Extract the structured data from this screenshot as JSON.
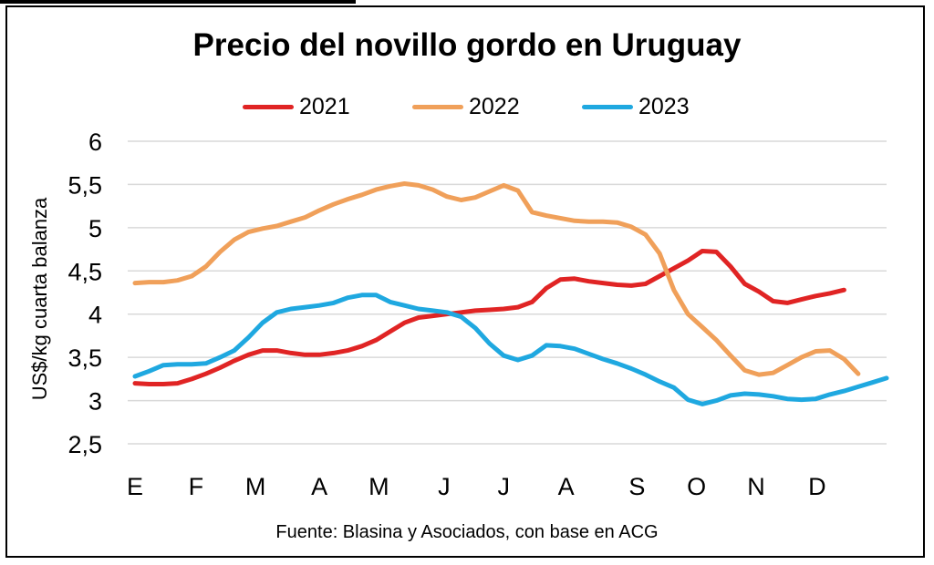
{
  "title": "Precio del novillo gordo en Uruguay",
  "source": "Fuente: Blasina y Asociados, con base en ACG",
  "chart_data": {
    "type": "line",
    "title": "Precio del novillo gordo en Uruguay",
    "ylabel": "US$/kg cuarta balanza",
    "xlabel": "",
    "ylim": [
      2.5,
      6
    ],
    "y_ticks": [
      {
        "value": 6,
        "label": "6"
      },
      {
        "value": 5.5,
        "label": "5,5"
      },
      {
        "value": 5,
        "label": "5"
      },
      {
        "value": 4.5,
        "label": "4,5"
      },
      {
        "value": 4,
        "label": "4"
      },
      {
        "value": 3.5,
        "label": "3,5"
      },
      {
        "value": 3,
        "label": "3"
      },
      {
        "value": 2.5,
        "label": "2,5"
      }
    ],
    "x_ticks": [
      {
        "week": 1,
        "label": "E"
      },
      {
        "week": 5.3,
        "label": "F"
      },
      {
        "week": 9.5,
        "label": "M"
      },
      {
        "week": 14,
        "label": "A"
      },
      {
        "week": 18.2,
        "label": "M"
      },
      {
        "week": 22.8,
        "label": "J"
      },
      {
        "week": 27,
        "label": "J"
      },
      {
        "week": 31.4,
        "label": "A"
      },
      {
        "week": 36.4,
        "label": "S"
      },
      {
        "week": 40.6,
        "label": "O"
      },
      {
        "week": 44.8,
        "label": "N"
      },
      {
        "week": 49.1,
        "label": "D"
      }
    ],
    "x_range": [
      1,
      54
    ],
    "grid": true,
    "legend_position": "top",
    "series": [
      {
        "name": "2021",
        "color": "#e02424",
        "x": [
          1,
          2,
          3,
          4,
          5,
          6,
          7,
          8,
          9,
          10,
          11,
          12,
          13,
          14,
          15,
          16,
          17,
          18,
          19,
          20,
          21,
          22,
          23,
          24,
          25,
          26,
          27,
          28,
          29,
          30,
          31,
          32,
          33,
          34,
          35,
          36,
          37,
          38,
          39,
          40,
          41,
          42,
          43,
          44,
          45,
          46,
          47,
          48,
          49,
          50,
          51
        ],
        "values": [
          3.2,
          3.19,
          3.19,
          3.2,
          3.25,
          3.31,
          3.38,
          3.46,
          3.53,
          3.58,
          3.58,
          3.55,
          3.53,
          3.53,
          3.55,
          3.58,
          3.63,
          3.7,
          3.8,
          3.9,
          3.96,
          3.98,
          4.0,
          4.02,
          4.04,
          4.05,
          4.06,
          4.08,
          4.14,
          4.3,
          4.4,
          4.41,
          4.38,
          4.36,
          4.34,
          4.33,
          4.35,
          4.44,
          4.53,
          4.62,
          4.73,
          4.72,
          4.55,
          4.35,
          4.26,
          4.15,
          4.13,
          4.17,
          4.21,
          4.24,
          4.28
        ]
      },
      {
        "name": "2022",
        "color": "#f0a05a",
        "x": [
          1,
          2,
          3,
          4,
          5,
          6,
          7,
          8,
          9,
          10,
          11,
          12,
          13,
          14,
          15,
          16,
          17,
          18,
          19,
          20,
          21,
          22,
          23,
          24,
          25,
          26,
          27,
          28,
          29,
          30,
          31,
          32,
          33,
          34,
          35,
          36,
          37,
          38,
          39,
          40,
          41,
          42,
          43,
          44,
          45,
          46,
          47,
          48,
          49,
          50,
          51,
          52
        ],
        "values": [
          4.36,
          4.37,
          4.37,
          4.39,
          4.44,
          4.55,
          4.72,
          4.86,
          4.95,
          4.99,
          5.02,
          5.07,
          5.12,
          5.2,
          5.27,
          5.33,
          5.38,
          5.44,
          5.48,
          5.51,
          5.49,
          5.44,
          5.36,
          5.32,
          5.35,
          5.42,
          5.49,
          5.43,
          5.18,
          5.14,
          5.11,
          5.08,
          5.07,
          5.07,
          5.06,
          5.01,
          4.92,
          4.7,
          4.28,
          4.0,
          3.85,
          3.7,
          3.52,
          3.35,
          3.3,
          3.32,
          3.41,
          3.5,
          3.57,
          3.58,
          3.48,
          3.31
        ]
      },
      {
        "name": "2023",
        "color": "#1fa8e0",
        "x": [
          1,
          2,
          3,
          4,
          5,
          6,
          7,
          8,
          9,
          10,
          11,
          12,
          13,
          14,
          15,
          16,
          17,
          18,
          19,
          20,
          21,
          22,
          23,
          24,
          25,
          26,
          27,
          28,
          29,
          30,
          31,
          32,
          33,
          34,
          35,
          36,
          37,
          38,
          39,
          40,
          41,
          42,
          43,
          44,
          45,
          46,
          47,
          48,
          49,
          50,
          51,
          52,
          53,
          54
        ],
        "values": [
          3.28,
          3.34,
          3.41,
          3.42,
          3.42,
          3.43,
          3.5,
          3.58,
          3.73,
          3.9,
          4.02,
          4.06,
          4.08,
          4.1,
          4.13,
          4.19,
          4.22,
          4.22,
          4.14,
          4.1,
          4.06,
          4.04,
          4.02,
          3.97,
          3.84,
          3.66,
          3.52,
          3.47,
          3.52,
          3.64,
          3.63,
          3.6,
          3.54,
          3.48,
          3.43,
          3.37,
          3.3,
          3.22,
          3.15,
          3.01,
          2.96,
          3.0,
          3.06,
          3.08,
          3.07,
          3.05,
          3.02,
          3.01,
          3.02,
          3.07,
          3.11,
          3.16,
          3.21,
          3.26
        ]
      }
    ]
  }
}
